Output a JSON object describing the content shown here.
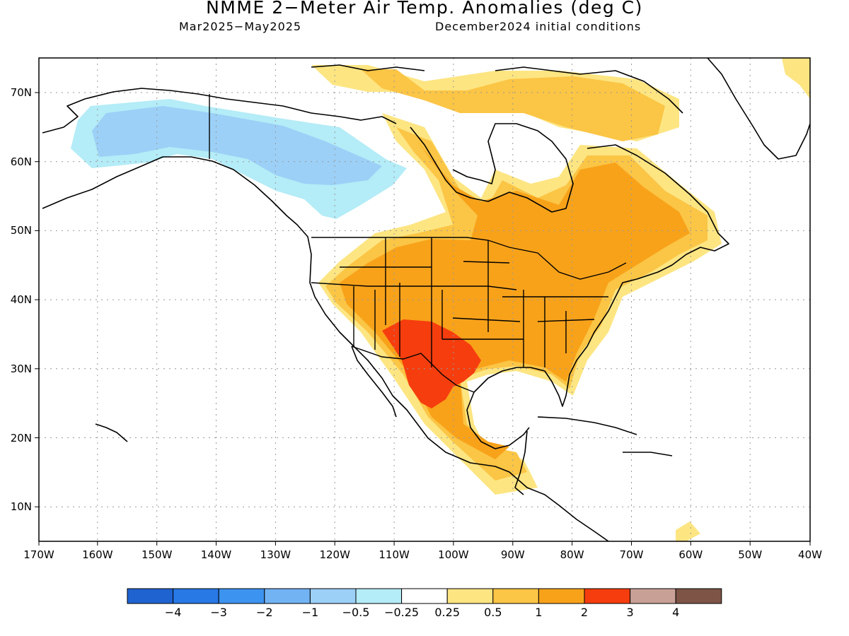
{
  "title": "NMME 2−Meter Air Temp. Anomalies (deg C)",
  "subtitle_left": "Mar2025−May2025",
  "subtitle_right": "December2024 initial conditions",
  "map": {
    "lon_range": [
      -170,
      -40
    ],
    "lat_range": [
      5,
      75
    ],
    "lon_ticks": [
      "170W",
      "160W",
      "150W",
      "140W",
      "130W",
      "120W",
      "110W",
      "100W",
      "90W",
      "80W",
      "70W",
      "60W",
      "50W",
      "40W"
    ],
    "lat_ticks": [
      "10N",
      "20N",
      "30N",
      "40N",
      "50N",
      "60N",
      "70N"
    ],
    "grid": "dotted"
  },
  "colorbar": {
    "colors": [
      "#1f63d1",
      "#2878e6",
      "#3d93f0",
      "#72b3f4",
      "#9cd0f7",
      "#b4ecf7",
      "#ffffff",
      "#fde582",
      "#fbc545",
      "#f8a21a",
      "#f63d0e",
      "#c8a096",
      "#7d5446"
    ],
    "labels": [
      "−4",
      "−3",
      "−2",
      "−1",
      "−0.5",
      "−0.25",
      "0.25",
      "0.5",
      "1",
      "2",
      "3",
      "4"
    ]
  },
  "anomaly_regions": [
    {
      "region": "Alaska / NW Canada",
      "category": "-1 to -0.5",
      "color": "#9cd0f7"
    },
    {
      "region": "Alaska fringe",
      "category": "-0.5 to -0.25",
      "color": "#b4ecf7"
    },
    {
      "region": "Southwest US / N Mexico",
      "category": "2 to 3",
      "color": "#f63d0e"
    },
    {
      "region": "Central & Eastern US, Eastern Canada",
      "category": "1 to 2",
      "color": "#f8a21a"
    },
    {
      "region": "Margins",
      "category": "0.5 to 1",
      "color": "#fbc545"
    },
    {
      "region": "Outer margins",
      "category": "0.25 to 0.5",
      "color": "#fde582"
    }
  ]
}
